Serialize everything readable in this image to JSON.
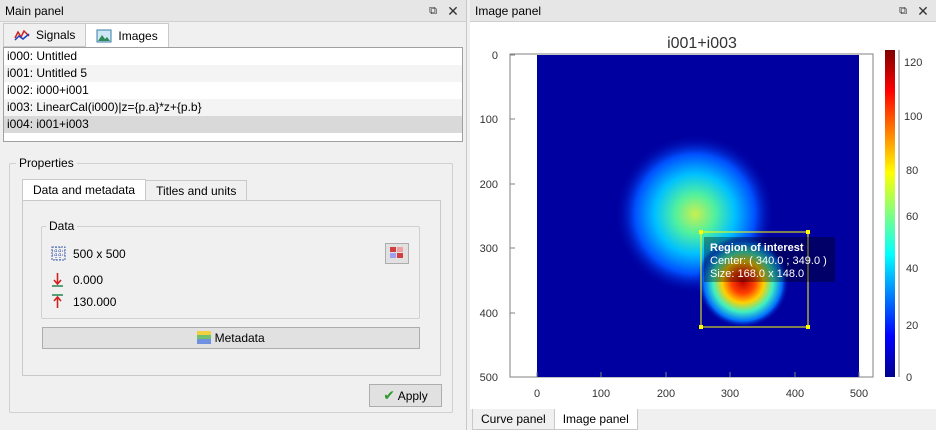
{
  "main_panel": {
    "title": "Main panel",
    "tabs": [
      {
        "label": "Signals",
        "icon": "signals-icon"
      },
      {
        "label": "Images",
        "icon": "images-icon"
      }
    ],
    "objects": [
      "i000: Untitled",
      "i001: Untitled 5",
      "i002: i000+i001",
      "i003: LinearCal(i000)|z={p.a}*z+{p.b}",
      "i004: i001+i003"
    ],
    "selected_index": 4,
    "properties": {
      "title": "Properties",
      "tabs": [
        "Data and metadata",
        "Titles and units"
      ],
      "data_group_title": "Data",
      "size": "500 x 500",
      "min_value": "0.000",
      "max_value": "130.000",
      "metadata_label": "Metadata",
      "apply_label": "Apply"
    }
  },
  "image_panel": {
    "title": "Image panel",
    "plot_title": "i001+i003",
    "roi": {
      "title": "Region of interest",
      "center": "Center: ( 340.0 ; 349.0 )",
      "size": "Size: 168.0 x 148.0"
    },
    "x_ticks": [
      "0",
      "100",
      "200",
      "300",
      "400",
      "500"
    ],
    "y_ticks": [
      "0",
      "100",
      "200",
      "300",
      "400",
      "500"
    ],
    "colorbar_ticks": [
      "0",
      "20",
      "40",
      "60",
      "80",
      "100",
      "120"
    ],
    "bottom_tabs": [
      "Curve panel",
      "Image panel"
    ],
    "colors": {
      "background": "#0000a0",
      "roi": "#ffff00"
    }
  }
}
